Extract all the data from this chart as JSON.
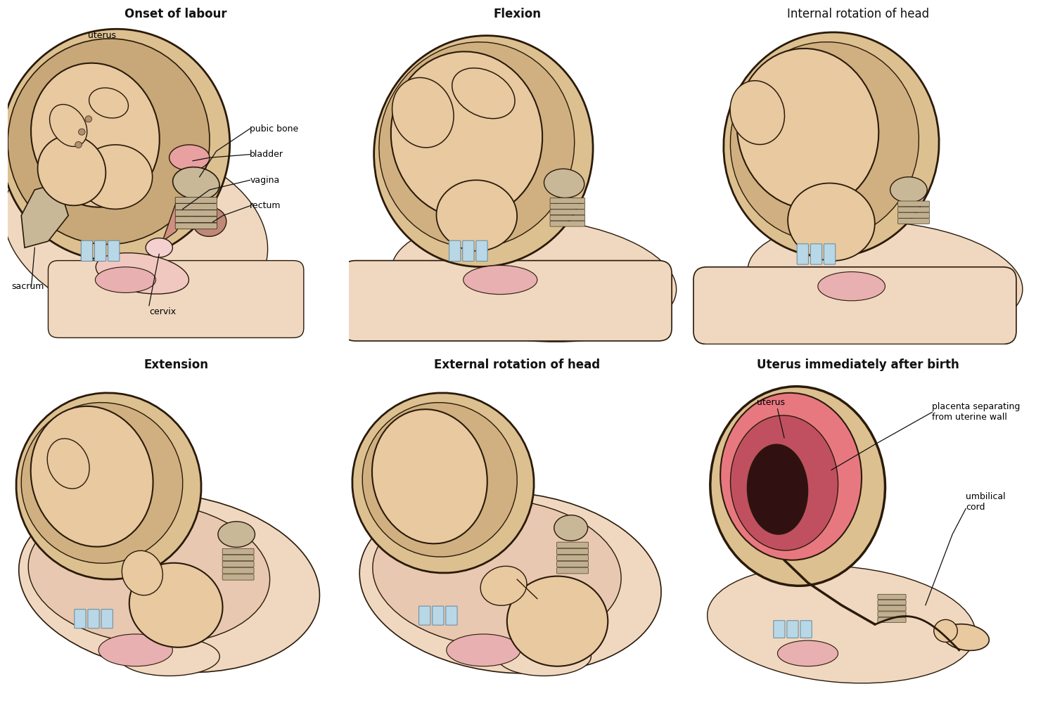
{
  "background_color": "#ffffff",
  "figure_bg": "#ffffff",
  "panels": [
    {
      "title": "Onset of labour",
      "title_bold": true,
      "row": 0,
      "col": 0
    },
    {
      "title": "Flexion",
      "title_bold": true,
      "row": 0,
      "col": 1
    },
    {
      "title": "Internal rotation of head",
      "title_bold": false,
      "row": 0,
      "col": 2
    },
    {
      "title": "Extension",
      "title_bold": true,
      "row": 1,
      "col": 0
    },
    {
      "title": "External rotation of head",
      "title_bold": true,
      "row": 1,
      "col": 1
    },
    {
      "title": "Uterus immediately after birth",
      "title_bold": true,
      "row": 1,
      "col": 2
    }
  ],
  "skin_light": "#e8c9a0",
  "skin_mid": "#d4a870",
  "skin_dark": "#c49060",
  "outline": "#2a1a0a",
  "pink_light": "#f5d0d0",
  "pink_mid": "#e8a0a0",
  "pink_dark": "#c87070",
  "blue_light": "#b8d8e8",
  "white_bg": "#f8f4f0",
  "gray_bone": "#c8b898",
  "label_fs": 9,
  "title_fs": 12,
  "annot_lw": 0.9
}
